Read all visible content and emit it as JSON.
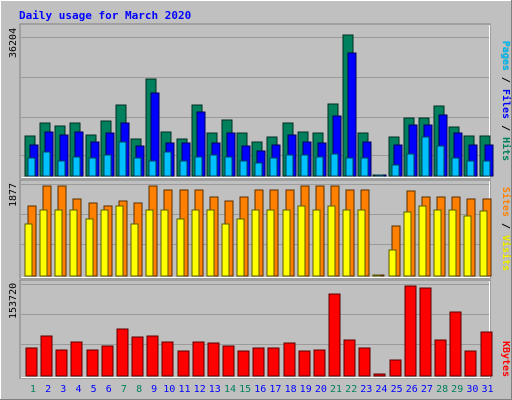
{
  "title": "Daily usage for March 2020",
  "colors": {
    "background": "#C0C0C0",
    "title": "#0000FF",
    "hits": "#00805C",
    "files": "#0000FF",
    "pages": "#00C0FF",
    "visits": "#FFFF00",
    "sites": "#FF8000",
    "kbytes": "#FF0000",
    "weekend": "#00805C",
    "weekday": "#0000FF"
  },
  "chart_data": [
    {
      "type": "bar",
      "panel": "hits-files-pages",
      "scale_max_label": "36204",
      "ylim": [
        0,
        36204
      ],
      "legend": [
        {
          "label": "Pages",
          "color": "#00C0FF"
        },
        {
          "label": "Files",
          "color": "#0000FF"
        },
        {
          "label": "Hits",
          "color": "#00805C"
        }
      ],
      "legend_separator": " / ",
      "categories": [
        "1",
        "2",
        "3",
        "4",
        "5",
        "6",
        "7",
        "8",
        "9",
        "10",
        "11",
        "12",
        "13",
        "14",
        "15",
        "16",
        "17",
        "18",
        "19",
        "20",
        "21",
        "22",
        "23",
        "24",
        "25",
        "26",
        "27",
        "28",
        "29",
        "30",
        "31"
      ],
      "series": [
        {
          "name": "Hits",
          "values": [
            9900,
            13000,
            12300,
            13000,
            10200,
            13500,
            17600,
            9200,
            23900,
            10900,
            9200,
            17600,
            10600,
            13900,
            10600,
            8400,
            9500,
            13000,
            10900,
            10500,
            17800,
            34700,
            10600,
            0,
            9500,
            14400,
            14400,
            17200,
            12000,
            9800,
            9800
          ]
        },
        {
          "name": "Files",
          "values": [
            7700,
            10900,
            10000,
            10900,
            8400,
            10600,
            13000,
            7300,
            20500,
            8100,
            8100,
            15800,
            8100,
            10600,
            7300,
            6200,
            7700,
            10200,
            8400,
            8100,
            14800,
            30200,
            8400,
            0,
            7700,
            12600,
            12600,
            15000,
            10600,
            7700,
            7700
          ]
        },
        {
          "name": "Pages",
          "values": [
            4400,
            5900,
            3700,
            4800,
            4400,
            5100,
            8400,
            4400,
            3700,
            5900,
            3700,
            4800,
            5100,
            4800,
            3700,
            3300,
            4400,
            5100,
            5100,
            4800,
            5500,
            4400,
            4400,
            0,
            2600,
            5500,
            9500,
            7300,
            4400,
            3700,
            3700
          ]
        }
      ]
    },
    {
      "type": "bar",
      "panel": "visits-sites",
      "scale_max_label": "1877",
      "ylim": [
        0,
        1877
      ],
      "legend": [
        {
          "label": "Sites",
          "color": "#FF8000"
        },
        {
          "label": "Visits",
          "color": "#FFFF00"
        }
      ],
      "legend_separator": " / ",
      "categories": [
        "1",
        "2",
        "3",
        "4",
        "5",
        "6",
        "7",
        "8",
        "9",
        "10",
        "11",
        "12",
        "13",
        "14",
        "15",
        "16",
        "17",
        "18",
        "19",
        "20",
        "21",
        "22",
        "23",
        "24",
        "25",
        "26",
        "27",
        "28",
        "29",
        "30",
        "31"
      ],
      "series": [
        {
          "name": "Sites",
          "values": [
            1420,
            1840,
            1840,
            1580,
            1490,
            1420,
            1520,
            1490,
            1840,
            1750,
            1750,
            1750,
            1620,
            1540,
            1620,
            1750,
            1750,
            1750,
            1840,
            1840,
            1840,
            1750,
            1750,
            20,
            1020,
            1740,
            1620,
            1620,
            1620,
            1580,
            1580
          ]
        },
        {
          "name": "Visits",
          "values": [
            1060,
            1350,
            1350,
            1350,
            1160,
            1350,
            1420,
            1060,
            1350,
            1350,
            1160,
            1350,
            1350,
            1070,
            1160,
            1350,
            1350,
            1350,
            1420,
            1350,
            1420,
            1350,
            1350,
            0,
            540,
            1310,
            1420,
            1350,
            1350,
            1220,
            1330
          ]
        }
      ]
    },
    {
      "type": "bar",
      "panel": "kbytes",
      "scale_max_label": "153720",
      "ylim": [
        0,
        153720
      ],
      "legend": [
        {
          "label": "KBytes",
          "color": "#FF0000"
        }
      ],
      "categories": [
        "1",
        "2",
        "3",
        "4",
        "5",
        "6",
        "7",
        "8",
        "9",
        "10",
        "11",
        "12",
        "13",
        "14",
        "15",
        "16",
        "17",
        "18",
        "19",
        "20",
        "21",
        "22",
        "23",
        "24",
        "25",
        "26",
        "27",
        "28",
        "29",
        "30",
        "31"
      ],
      "series": [
        {
          "name": "KBytes",
          "values": [
            46900,
            67200,
            43200,
            56300,
            43200,
            49700,
            78200,
            65300,
            67200,
            56300,
            41300,
            56300,
            54600,
            49700,
            41300,
            47000,
            47000,
            54600,
            41300,
            43200,
            137800,
            59800,
            47000,
            3800,
            27500,
            150000,
            147000,
            59800,
            107000,
            41300,
            73300
          ]
        }
      ]
    }
  ],
  "x_axis": {
    "labels": [
      "1",
      "2",
      "3",
      "4",
      "5",
      "6",
      "7",
      "8",
      "9",
      "10",
      "11",
      "12",
      "13",
      "14",
      "15",
      "16",
      "17",
      "18",
      "19",
      "20",
      "21",
      "22",
      "23",
      "24",
      "25",
      "26",
      "27",
      "28",
      "29",
      "30",
      "31"
    ],
    "weekend_days": [
      1,
      7,
      8,
      14,
      15,
      21,
      22,
      28,
      29
    ]
  }
}
